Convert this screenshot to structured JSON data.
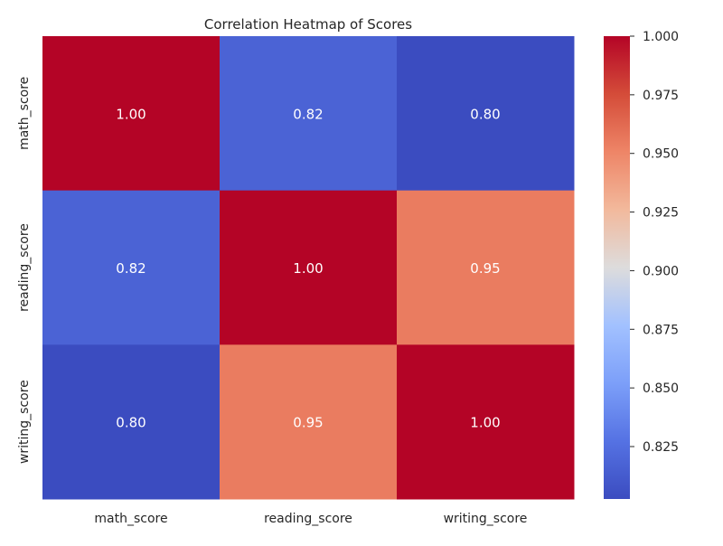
{
  "chart_data": {
    "type": "heatmap",
    "title": "Correlation Heatmap of Scores",
    "xlabel": "",
    "ylabel": "",
    "x_categories": [
      "math_score",
      "reading_score",
      "writing_score"
    ],
    "y_categories": [
      "math_score",
      "reading_score",
      "writing_score"
    ],
    "values": [
      [
        1.0,
        0.81758,
        0.802642
      ],
      [
        0.81758,
        1.0,
        0.954598
      ],
      [
        0.802642,
        0.954598,
        1.0
      ]
    ],
    "annotations": [
      [
        "1.00",
        "0.82",
        "0.80"
      ],
      [
        "0.82",
        "1.00",
        "0.95"
      ],
      [
        "0.80",
        "0.95",
        "1.00"
      ]
    ],
    "colormap": "coolwarm",
    "color_range": [
      0.802642,
      1.0
    ],
    "colorbar": {
      "position": "right",
      "ticks": [
        0.825,
        0.85,
        0.875,
        0.9,
        0.925,
        0.95,
        0.975,
        1.0
      ],
      "tick_labels": [
        "0.825",
        "0.850",
        "0.875",
        "0.900",
        "0.925",
        "0.950",
        "0.975",
        "1.000"
      ]
    },
    "grid": false
  }
}
